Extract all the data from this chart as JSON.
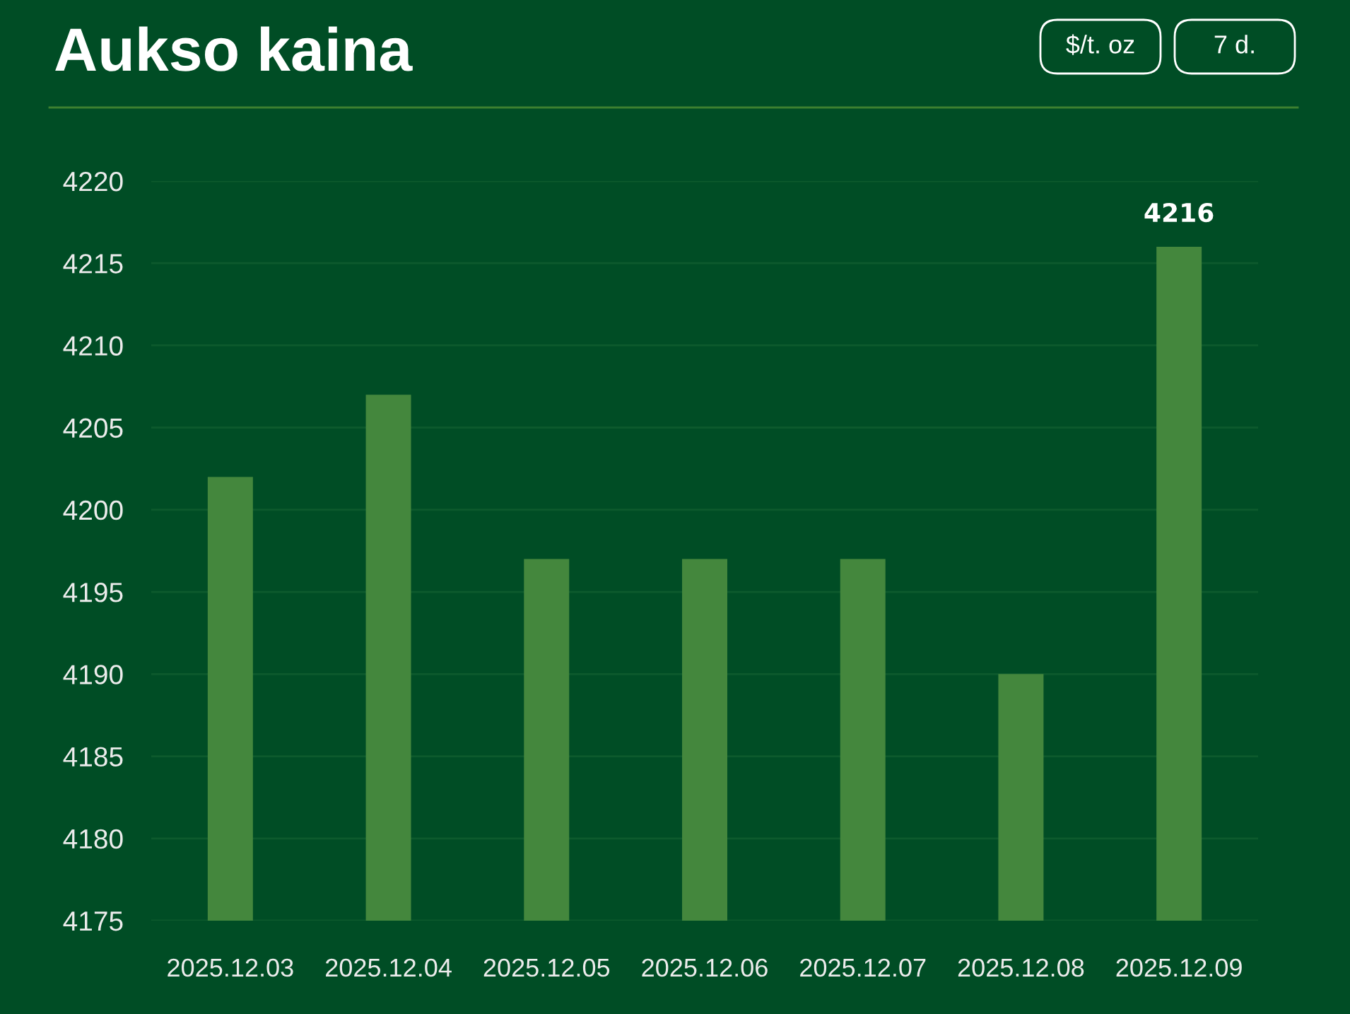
{
  "chart_data": {
    "type": "bar",
    "title": "Aukso kaina",
    "annotations": [
      "$/t. oz",
      "7 d."
    ],
    "categories": [
      "2025.12.03",
      "2025.12.04",
      "2025.12.05",
      "2025.12.06",
      "2025.12.07",
      "2025.12.08",
      "2025.12.09"
    ],
    "values": [
      4202,
      4207,
      4197,
      4197,
      4197,
      4190,
      4216
    ],
    "color": "#44873d",
    "value_labels": [
      null,
      null,
      null,
      null,
      null,
      null,
      "4216"
    ],
    "ylim": [
      4175,
      4220
    ],
    "yticks": [
      4175,
      4180,
      4185,
      4190,
      4195,
      4200,
      4205,
      4210,
      4215,
      4220
    ],
    "grid": "y"
  }
}
